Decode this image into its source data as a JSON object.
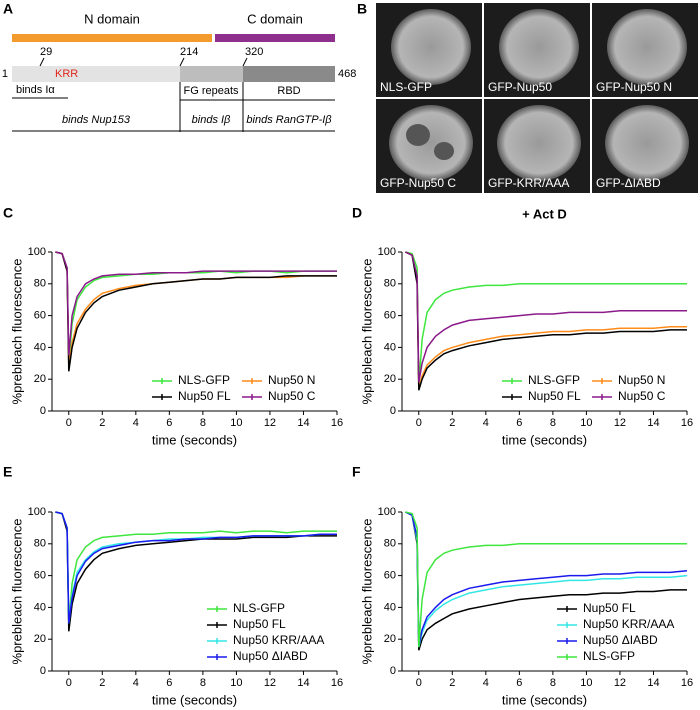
{
  "panel_labels": [
    "A",
    "B",
    "C",
    "D",
    "E",
    "F"
  ],
  "diagram": {
    "n_domain": "N domain",
    "c_domain": "C domain",
    "n_domain_color": "#f39c2d",
    "c_domain_color": "#8e2f8e",
    "res_29": "29",
    "krr": "KRR",
    "res_214": "214",
    "res_320": "320",
    "res_1": "1",
    "res_468": "468",
    "binds_ia": "binds Iα",
    "fg_repeats": "FG repeats",
    "rbd": "RBD",
    "binds_nup153": "binds Nup153",
    "binds_ib": "binds Iβ",
    "binds_ranGTP": "binds RanGTP-Iβ"
  },
  "images": [
    "NLS-GFP",
    "GFP-Nup50",
    "GFP-Nup50 N",
    "GFP-Nup50 C",
    "GFP-KRR/AAA",
    "GFP-ΔIABD"
  ],
  "chart_data": [
    {
      "type": "line",
      "xlabel": "time (seconds)",
      "ylabel": "%prebleach fluorescence",
      "legend": "lower right",
      "legend_columns": 2,
      "xlim": [
        -1,
        16
      ],
      "xticks": [
        0,
        2,
        4,
        6,
        8,
        10,
        12,
        14,
        16
      ],
      "ylim": [
        0,
        100
      ],
      "yticks": [
        0,
        20,
        40,
        60,
        80,
        100
      ],
      "x": [
        -0.8,
        -0.4,
        -0.1,
        0,
        0.2,
        0.5,
        1,
        1.5,
        2,
        3,
        4,
        5,
        6,
        7,
        8,
        9,
        10,
        11,
        12,
        13,
        14,
        15,
        16
      ],
      "series": [
        {
          "name": "NLS-GFP",
          "color": "#3ee63e",
          "values": [
            100,
            99,
            90,
            30,
            55,
            70,
            78,
            82,
            84,
            85,
            86,
            86,
            87,
            87,
            87,
            88,
            87,
            88,
            88,
            87,
            88,
            88,
            88
          ]
        },
        {
          "name": "Nup50 N",
          "color": "#ff8c1a",
          "values": [
            100,
            99,
            88,
            28,
            43,
            55,
            64,
            70,
            74,
            77,
            79,
            80,
            81,
            82,
            83,
            83,
            84,
            84,
            84,
            84,
            85,
            85,
            85
          ]
        },
        {
          "name": "Nup50 FL",
          "color": "#000000",
          "values": [
            100,
            99,
            88,
            25,
            40,
            52,
            62,
            68,
            72,
            76,
            78,
            80,
            81,
            82,
            83,
            83,
            84,
            84,
            84,
            85,
            85,
            85,
            85
          ]
        },
        {
          "name": "Nup50 C",
          "color": "#8b1a8b",
          "values": [
            100,
            99,
            90,
            35,
            60,
            72,
            80,
            83,
            85,
            86,
            86,
            87,
            87,
            87,
            88,
            88,
            88,
            88,
            88,
            88,
            88,
            88,
            88
          ]
        }
      ]
    },
    {
      "type": "line",
      "title": "+ Act D",
      "xlabel": "time (seconds)",
      "ylabel": "%prebleach fluorescence",
      "legend": "lower right",
      "legend_columns": 2,
      "xlim": [
        -1,
        16
      ],
      "xticks": [
        0,
        2,
        4,
        6,
        8,
        10,
        12,
        14,
        16
      ],
      "ylim": [
        0,
        100
      ],
      "yticks": [
        0,
        20,
        40,
        60,
        80,
        100
      ],
      "x": [
        -0.8,
        -0.4,
        -0.1,
        0,
        0.2,
        0.5,
        1,
        1.5,
        2,
        3,
        4,
        5,
        6,
        7,
        8,
        9,
        10,
        11,
        12,
        13,
        14,
        15,
        16
      ],
      "series": [
        {
          "name": "NLS-GFP",
          "color": "#3ee63e",
          "values": [
            100,
            99,
            90,
            15,
            45,
            62,
            70,
            74,
            76,
            78,
            79,
            79,
            80,
            80,
            80,
            80,
            80,
            80,
            80,
            80,
            80,
            80,
            80
          ]
        },
        {
          "name": "Nup50 N",
          "color": "#ff8c1a",
          "values": [
            100,
            98,
            82,
            14,
            22,
            29,
            34,
            38,
            40,
            43,
            45,
            47,
            48,
            49,
            50,
            50,
            51,
            51,
            52,
            52,
            52,
            53,
            53
          ]
        },
        {
          "name": "Nup50 FL",
          "color": "#000000",
          "values": [
            100,
            98,
            80,
            13,
            20,
            27,
            32,
            36,
            38,
            41,
            43,
            45,
            46,
            47,
            48,
            48,
            49,
            49,
            50,
            50,
            50,
            51,
            51
          ]
        },
        {
          "name": "Nup50 C",
          "color": "#8b1a8b",
          "values": [
            100,
            98,
            85,
            18,
            30,
            40,
            47,
            51,
            54,
            57,
            58,
            59,
            60,
            61,
            61,
            62,
            62,
            62,
            63,
            63,
            63,
            63,
            63
          ]
        }
      ]
    },
    {
      "type": "line",
      "xlabel": "time (seconds)",
      "ylabel": "%prebleach fluorescence",
      "legend": "lower right",
      "legend_columns": 1,
      "xlim": [
        -1,
        16
      ],
      "xticks": [
        0,
        2,
        4,
        6,
        8,
        10,
        12,
        14,
        16
      ],
      "ylim": [
        0,
        100
      ],
      "yticks": [
        0,
        20,
        40,
        60,
        80,
        100
      ],
      "x": [
        -0.8,
        -0.4,
        -0.1,
        0,
        0.2,
        0.5,
        1,
        1.5,
        2,
        3,
        4,
        5,
        6,
        7,
        8,
        9,
        10,
        11,
        12,
        13,
        14,
        15,
        16
      ],
      "series": [
        {
          "name": "NLS-GFP",
          "color": "#3ee63e",
          "values": [
            100,
            99,
            90,
            30,
            55,
            70,
            78,
            82,
            84,
            85,
            86,
            86,
            87,
            87,
            87,
            88,
            87,
            88,
            88,
            87,
            88,
            88,
            88
          ]
        },
        {
          "name": "Nup50 FL",
          "color": "#000000",
          "values": [
            100,
            99,
            88,
            25,
            42,
            55,
            64,
            70,
            74,
            77,
            79,
            80,
            81,
            82,
            83,
            83,
            83,
            84,
            84,
            84,
            85,
            85,
            85
          ]
        },
        {
          "name": "Nup50 KRR/AAA",
          "color": "#33e6e6",
          "values": [
            100,
            99,
            90,
            30,
            48,
            62,
            70,
            75,
            78,
            80,
            81,
            82,
            83,
            83,
            84,
            84,
            84,
            85,
            85,
            85,
            85,
            86,
            86
          ]
        },
        {
          "name": "Nup50 ΔIABD",
          "color": "#1a1aee",
          "values": [
            100,
            99,
            90,
            30,
            46,
            60,
            69,
            74,
            77,
            79,
            81,
            82,
            82,
            83,
            83,
            84,
            84,
            85,
            85,
            85,
            85,
            86,
            86
          ]
        }
      ]
    },
    {
      "type": "line",
      "xlabel": "time (seconds)",
      "ylabel": "%prebleach fluorescence",
      "legend": "lower right",
      "legend_columns": 1,
      "xlim": [
        -1,
        16
      ],
      "xticks": [
        0,
        2,
        4,
        6,
        8,
        10,
        12,
        14,
        16
      ],
      "ylim": [
        0,
        100
      ],
      "yticks": [
        0,
        20,
        40,
        60,
        80,
        100
      ],
      "x": [
        -0.8,
        -0.4,
        -0.1,
        0,
        0.2,
        0.5,
        1,
        1.5,
        2,
        3,
        4,
        5,
        6,
        7,
        8,
        9,
        10,
        11,
        12,
        13,
        14,
        15,
        16
      ],
      "series": [
        {
          "name": "Nup50 FL",
          "color": "#000000",
          "values": [
            100,
            98,
            80,
            13,
            20,
            26,
            30,
            33,
            36,
            39,
            41,
            43,
            45,
            46,
            47,
            48,
            48,
            49,
            49,
            50,
            50,
            51,
            51
          ]
        },
        {
          "name": "Nup50 KRR/AAA",
          "color": "#33e6e6",
          "values": [
            100,
            98,
            82,
            15,
            24,
            32,
            38,
            42,
            45,
            49,
            51,
            53,
            54,
            55,
            56,
            57,
            57,
            58,
            58,
            59,
            59,
            59,
            60
          ]
        },
        {
          "name": "Nup50 ΔIABD",
          "color": "#1a1aee",
          "values": [
            100,
            98,
            84,
            16,
            26,
            34,
            40,
            45,
            48,
            52,
            54,
            56,
            57,
            58,
            59,
            60,
            60,
            61,
            61,
            62,
            62,
            62,
            63
          ]
        },
        {
          "name": "NLS-GFP",
          "color": "#3ee63e",
          "values": [
            100,
            99,
            90,
            15,
            45,
            62,
            70,
            74,
            76,
            78,
            79,
            79,
            80,
            80,
            80,
            80,
            80,
            80,
            80,
            80,
            80,
            80,
            80
          ]
        }
      ]
    }
  ]
}
